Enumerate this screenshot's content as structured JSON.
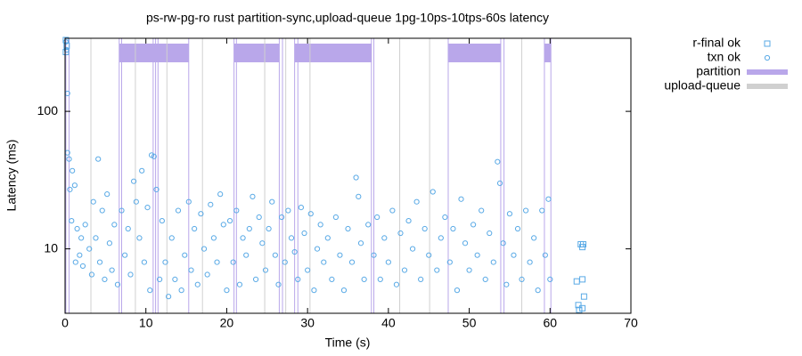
{
  "chart_data": {
    "type": "scatter",
    "title": "ps-rw-pg-ro rust partition-sync,upload-queue 1pg-10ps-10tps-60s latency",
    "xlabel": "Time (s)",
    "ylabel": "Latency (ms)",
    "xlim": [
      0,
      70
    ],
    "xticks": [
      0,
      10,
      20,
      30,
      40,
      50,
      60,
      70
    ],
    "ylim": [
      3.4,
      340
    ],
    "yticks": [
      10,
      100
    ],
    "log_y": true,
    "legend": "outside-top-right",
    "series": [
      {
        "name": "r-final ok",
        "color": "#5aaae6",
        "marker": "square",
        "x": [
          0.1,
          0.2,
          0.1,
          63.8,
          64.0,
          64.1,
          63.3,
          64.0,
          64.2,
          63.5,
          64.0,
          63.6
        ],
        "values": [
          330,
          300,
          270,
          10.8,
          10.3,
          10.8,
          5.8,
          6.0,
          4.5,
          3.9,
          3.7,
          3.6
        ]
      },
      {
        "name": "txn ok",
        "color": "#5aaae6",
        "marker": "circle",
        "x": [
          0.1,
          0.2,
          0.3,
          0.3,
          0.5,
          0.6,
          0.9,
          0.8,
          1.2,
          1.5,
          1.3,
          1.8,
          2.0,
          2.2,
          2.5,
          3.0,
          3.3,
          3.5,
          3.8,
          4.1,
          4.3,
          4.6,
          4.9,
          5.2,
          5.5,
          5.8,
          6.1,
          6.5,
          7.0,
          7.4,
          7.8,
          8.1,
          8.5,
          8.8,
          9.2,
          9.5,
          9.8,
          10.2,
          10.5,
          10.7,
          11.0,
          11.3,
          11.7,
          12.0,
          12.4,
          12.8,
          13.2,
          13.6,
          14.0,
          14.4,
          14.8,
          15.3,
          15.6,
          16.0,
          16.4,
          16.8,
          17.2,
          17.6,
          18.0,
          18.4,
          18.8,
          19.2,
          19.6,
          20.0,
          20.4,
          20.8,
          21.2,
          21.6,
          22.0,
          22.4,
          22.8,
          23.2,
          23.6,
          24.0,
          24.4,
          24.8,
          25.2,
          25.6,
          26.0,
          26.4,
          26.8,
          27.2,
          27.6,
          28.0,
          28.4,
          28.8,
          29.2,
          29.6,
          30.0,
          30.4,
          30.8,
          31.2,
          31.6,
          32.0,
          32.5,
          33.0,
          33.5,
          34.0,
          34.5,
          35.0,
          35.5,
          36.0,
          36.3,
          36.6,
          37.0,
          37.5,
          38.2,
          38.6,
          39.0,
          39.5,
          40.0,
          40.5,
          41.0,
          41.5,
          42.0,
          42.5,
          43.0,
          43.5,
          44.0,
          44.5,
          45.0,
          45.5,
          46.0,
          46.5,
          47.0,
          47.6,
          48.0,
          48.5,
          49.0,
          49.5,
          50.0,
          50.5,
          51.0,
          51.5,
          52.0,
          52.5,
          53.0,
          53.5,
          53.8,
          54.2,
          54.6,
          55.0,
          55.5,
          56.0,
          56.5,
          57.0,
          57.5,
          58.0,
          58.5,
          59.0,
          59.4,
          59.8,
          60.0
        ],
        "values": [
          320,
          280,
          135,
          50,
          45,
          27,
          37,
          16,
          29,
          14,
          8,
          9,
          12,
          7.5,
          15,
          10,
          6.5,
          22,
          12,
          45,
          8,
          19,
          6,
          25,
          11,
          7,
          15,
          5.5,
          19,
          9,
          14,
          6.5,
          31,
          22,
          12,
          37,
          8,
          20,
          5,
          48,
          47,
          27,
          6,
          16,
          8,
          4.5,
          12,
          6,
          19,
          5,
          9,
          22,
          7,
          14,
          5.5,
          18,
          10,
          6.5,
          21,
          12,
          8,
          25,
          15,
          5,
          16,
          8,
          19,
          5.5,
          12,
          9,
          14,
          24,
          6,
          17,
          11,
          7,
          14,
          22,
          9,
          5.5,
          17,
          8,
          19,
          12,
          9.5,
          6,
          20,
          13,
          7,
          18,
          5,
          10,
          15,
          8,
          12,
          6,
          17,
          9,
          5,
          14,
          8,
          33,
          24,
          11,
          6,
          15,
          9,
          17,
          6,
          12,
          8,
          19,
          5.5,
          13,
          7,
          16,
          10,
          22,
          6,
          14,
          9,
          26,
          7,
          12,
          17,
          8,
          14,
          5,
          23,
          11,
          7,
          15,
          9,
          19,
          6,
          13,
          8,
          43,
          30,
          11,
          5.5,
          18,
          9,
          14,
          6,
          19,
          8,
          12,
          5,
          19,
          9,
          23,
          6
        ]
      }
    ],
    "intervals": [
      {
        "name": "partition",
        "color": "#b9a7ea",
        "spans": [
          [
            6.7,
            15.3
          ],
          [
            20.9,
            26.5
          ],
          [
            28.4,
            37.9
          ],
          [
            47.4,
            53.9
          ],
          [
            59.3,
            60.1
          ]
        ],
        "x": [
          0.1,
          0.5,
          6.7,
          7.0,
          10.9,
          11.2,
          11.5,
          15.3,
          20.9,
          21.2,
          26.5,
          26.9,
          28.4,
          28.8,
          37.9,
          38.2,
          47.4,
          53.9,
          54.3,
          59.3,
          60.1
        ]
      },
      {
        "name": "upload-queue",
        "color": "#d0d0d0",
        "x": [
          3.2,
          8.7,
          12.6,
          17.0,
          24.7,
          27.3,
          30.3,
          41.4,
          45.1,
          56.5
        ]
      }
    ]
  }
}
